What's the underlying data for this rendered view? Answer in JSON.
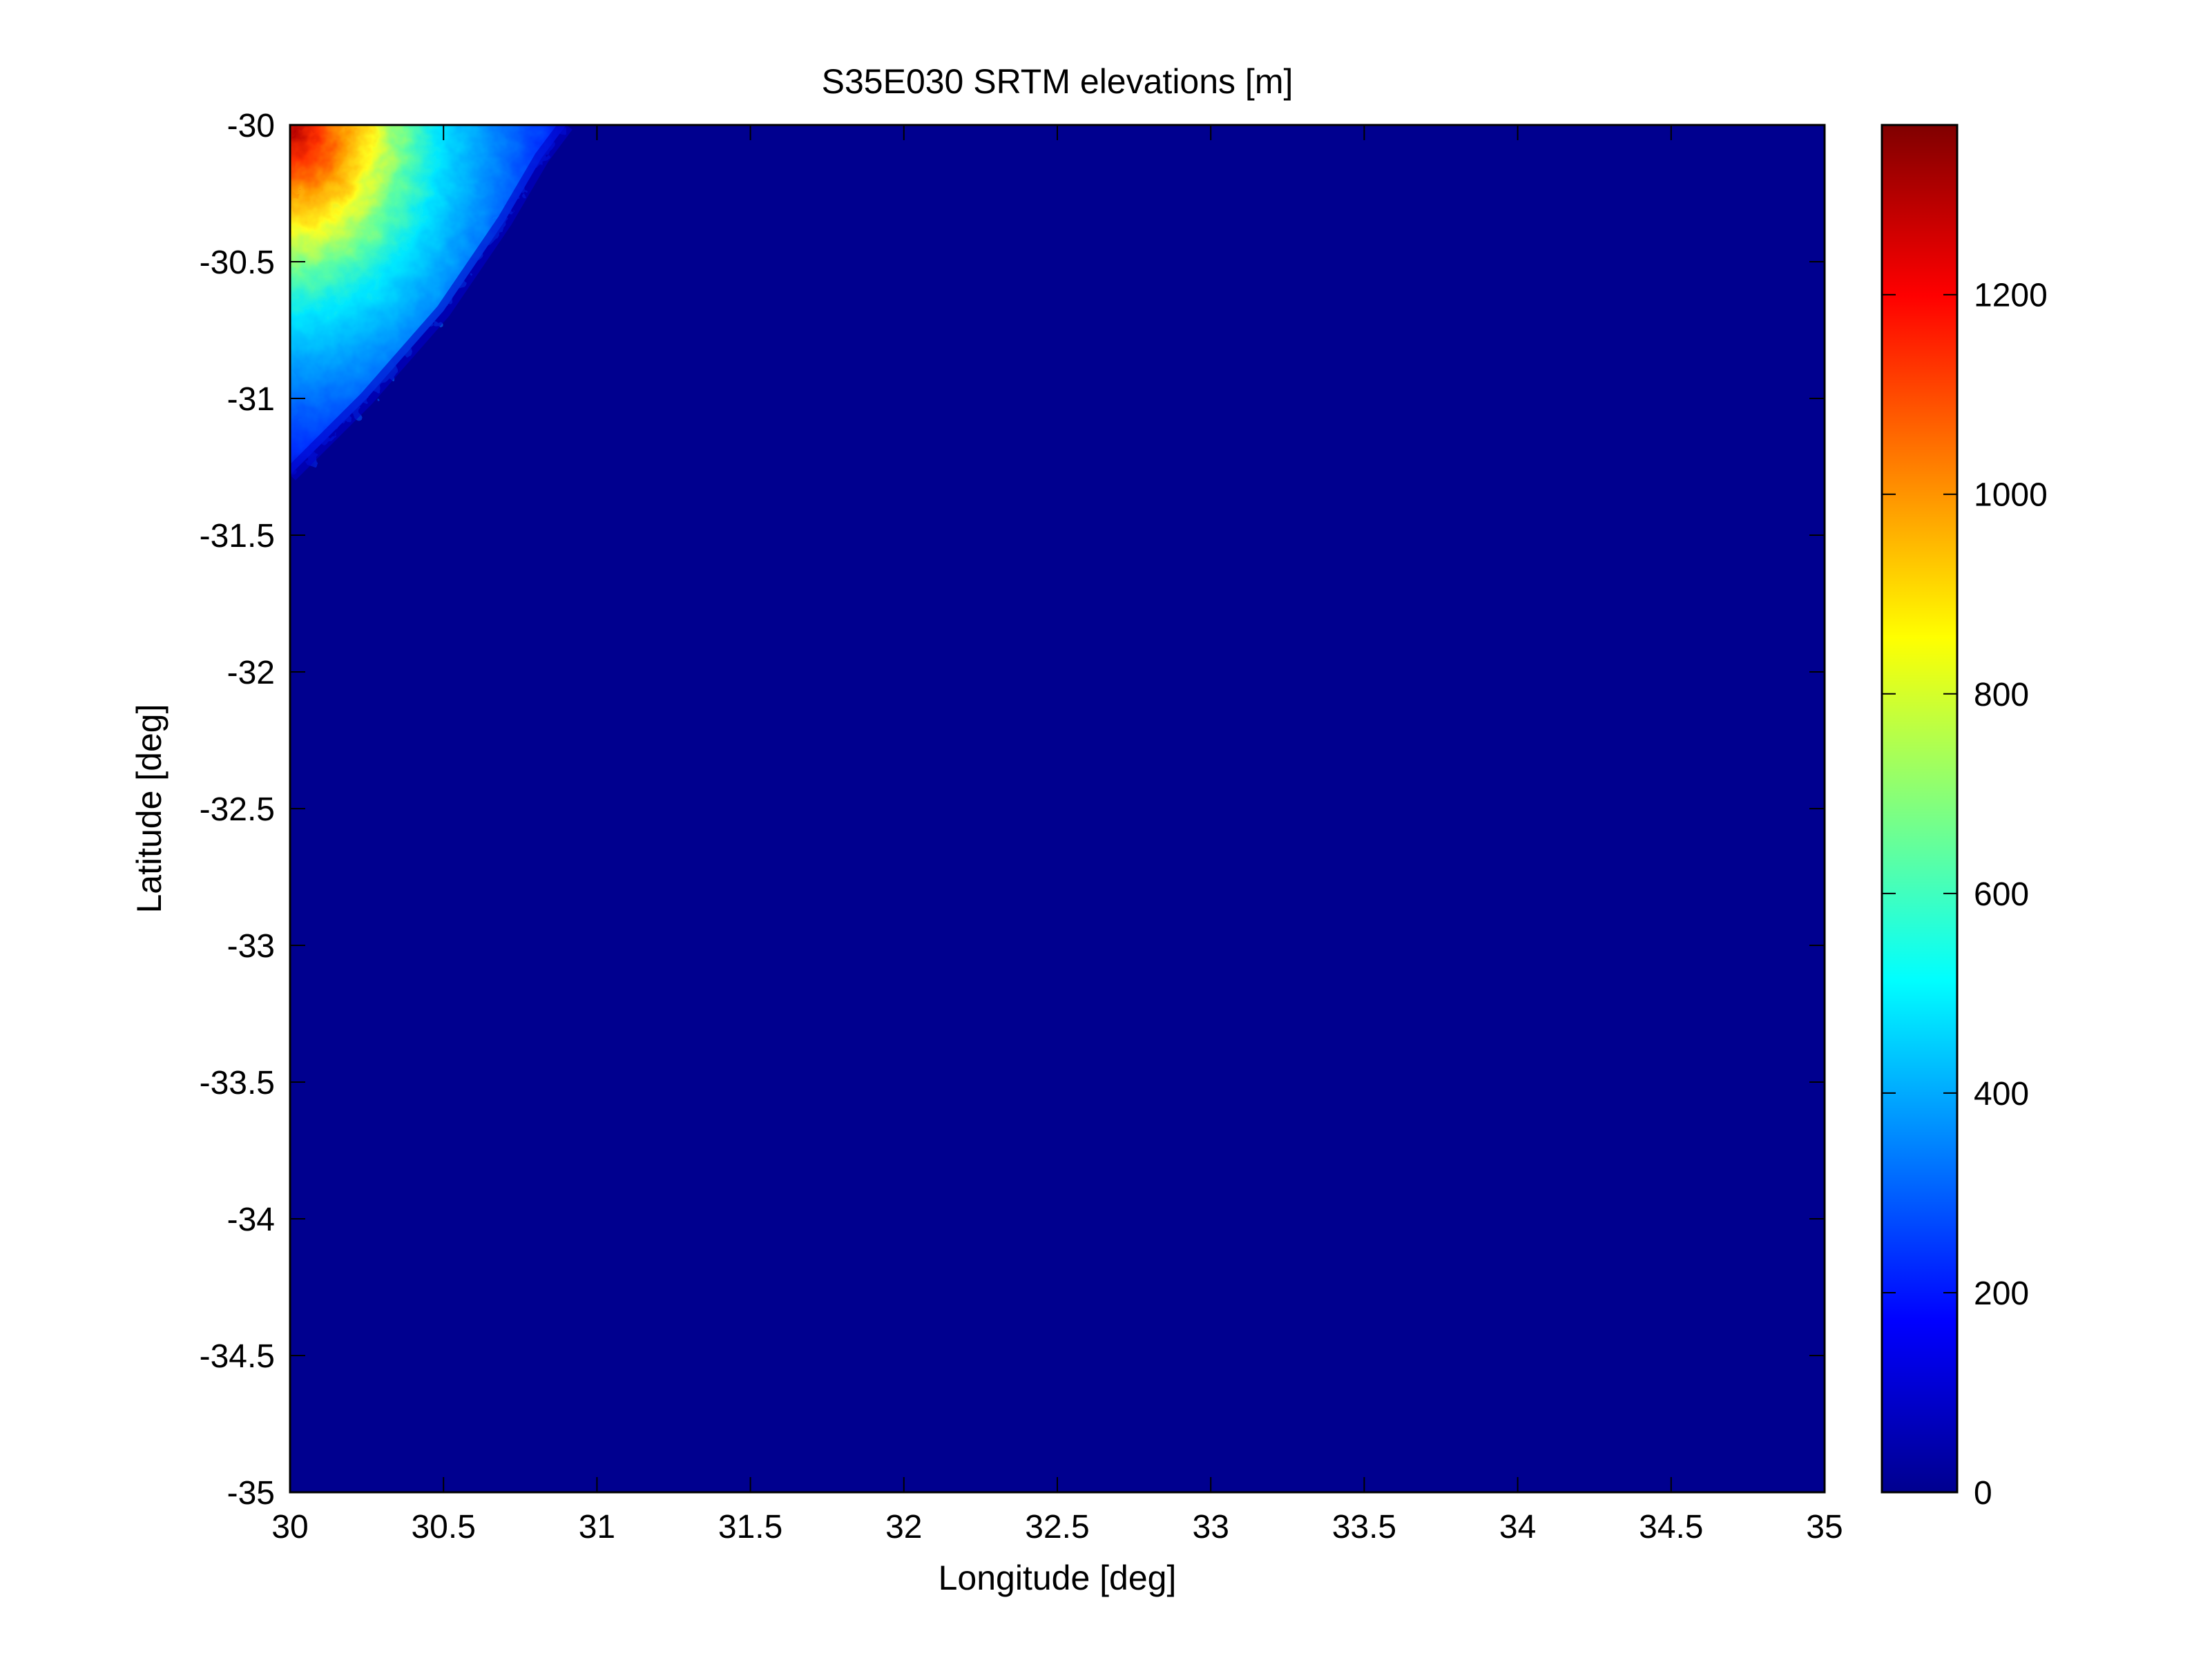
{
  "chart_data": {
    "type": "heatmap",
    "title": "S35E030 SRTM elevations [m]",
    "xlabel": "Longitude [deg]",
    "ylabel": "Latitude [deg]",
    "xlim": [
      30,
      35
    ],
    "ylim": [
      -35,
      -30
    ],
    "x_ticks": [
      "30",
      "30.5",
      "31",
      "31.5",
      "32",
      "32.5",
      "33",
      "33.5",
      "34",
      "34.5",
      "35"
    ],
    "y_ticks": [
      "-30",
      "-30.5",
      "-31",
      "-31.5",
      "-32",
      "-32.5",
      "-33",
      "-33.5",
      "-34",
      "-34.5",
      "-35"
    ],
    "colormap": "jet",
    "colorbar": {
      "range": [
        0,
        1370
      ],
      "ticks": [
        0,
        200,
        400,
        600,
        800,
        1000,
        1200
      ],
      "tick_labels": [
        "0",
        "200",
        "400",
        "600",
        "800",
        "1000",
        "1200"
      ]
    },
    "background_color": "#00008f",
    "land_region": {
      "description_of_values": "elevated terrain only in the north-west corner",
      "coast_points": [
        {
          "lon": 30.0,
          "lat": -31.28
        },
        {
          "lon": 30.25,
          "lat": -31.0
        },
        {
          "lon": 30.5,
          "lat": -30.68
        },
        {
          "lon": 30.7,
          "lat": -30.35
        },
        {
          "lon": 30.82,
          "lat": -30.12
        },
        {
          "lon": 30.9,
          "lat": -30.0
        }
      ],
      "peak": {
        "lon": 30.05,
        "lat": -30.08,
        "elevation": 1370
      }
    },
    "grid": false,
    "legend": "none"
  }
}
